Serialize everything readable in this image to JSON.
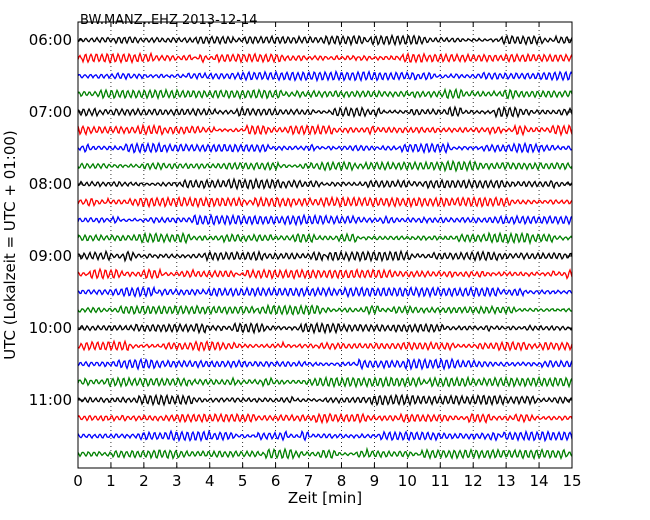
{
  "chart_data": {
    "type": "line",
    "title": "BW.MANZ..EHZ 2013-12-14",
    "xlabel": "Zeit  [min]",
    "ylabel": "UTC (Lokalzeit = UTC + 01:00)",
    "xlim": [
      0,
      15
    ],
    "x_ticks": [
      "0",
      "1",
      "2",
      "3",
      "4",
      "5",
      "6",
      "7",
      "8",
      "9",
      "10",
      "11",
      "12",
      "13",
      "14",
      "15"
    ],
    "y_ticks": [
      "06:00",
      "07:00",
      "08:00",
      "09:00",
      "10:00",
      "11:00"
    ],
    "grid": "vertical dotted",
    "trace_colors": [
      "#000000",
      "#ff0000",
      "#0000ff",
      "#008000"
    ],
    "traces_per_hour": 4,
    "trace_count": 24,
    "trace_start": "06:00",
    "trace_interval_min": 15
  }
}
